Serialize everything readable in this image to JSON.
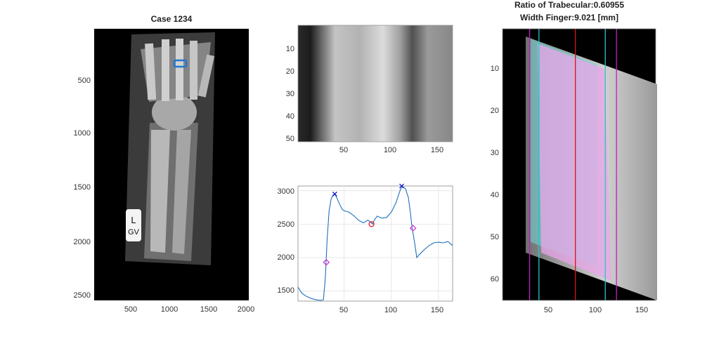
{
  "panels": {
    "left": {
      "title": "Case 1234",
      "xticks": [
        "500",
        "1000",
        "1500",
        "2000"
      ],
      "yticks": [
        "500",
        "1000",
        "1500",
        "2000",
        "2500"
      ],
      "marker_text": [
        "L",
        "GV"
      ]
    },
    "top_middle": {
      "xticks": [
        "50",
        "100",
        "150"
      ],
      "yticks": [
        "10",
        "20",
        "30",
        "40",
        "50"
      ]
    },
    "bottom_middle": {
      "xticks": [
        "50",
        "100",
        "150"
      ],
      "yticks": [
        "1500",
        "2000",
        "2500",
        "3000"
      ]
    },
    "right": {
      "title_line1": "Ratio of Trabecular:0.60955",
      "title_line2": "Width Finger:9.021 [mm]",
      "xticks": [
        "50",
        "100",
        "150"
      ],
      "yticks": [
        "10",
        "20",
        "30",
        "40",
        "50",
        "60"
      ]
    }
  },
  "chart_data": {
    "type": "line",
    "xlim": [
      1,
      165
    ],
    "ylim": [
      1350,
      3070
    ],
    "grid": true,
    "series": [
      {
        "x": [
          1,
          5,
          10,
          15,
          20,
          25,
          28,
          30,
          32,
          34,
          36,
          38,
          40,
          42,
          45,
          48,
          50,
          55,
          60,
          65,
          70,
          72,
          75,
          78,
          80,
          82,
          85,
          88,
          90,
          95,
          100,
          105,
          108,
          110,
          112,
          115,
          118,
          120,
          122,
          125,
          127,
          130,
          135,
          140,
          145,
          150,
          155,
          160,
          165
        ],
        "values": [
          1560,
          1470,
          1420,
          1390,
          1370,
          1360,
          1370,
          1700,
          2300,
          2700,
          2870,
          2930,
          2950,
          2900,
          2800,
          2720,
          2700,
          2680,
          2630,
          2560,
          2520,
          2530,
          2560,
          2530,
          2500,
          2560,
          2620,
          2600,
          2590,
          2600,
          2680,
          2820,
          2950,
          3030,
          3060,
          3030,
          2900,
          2700,
          2450,
          2200,
          2000,
          2050,
          2120,
          2180,
          2220,
          2230,
          2220,
          2240,
          2180
        ]
      }
    ],
    "markers": [
      {
        "type": "peak",
        "symbol": "x",
        "color": "#0000cc",
        "x": 40,
        "y": 2950
      },
      {
        "type": "peak",
        "symbol": "x",
        "color": "#0000cc",
        "x": 111,
        "y": 3070
      },
      {
        "type": "valley",
        "symbol": "o",
        "color": "#e0101a",
        "x": 79,
        "y": 2500
      },
      {
        "type": "edge",
        "symbol": "diamond",
        "color": "#cc33cc",
        "x": 31,
        "y": 1930
      },
      {
        "type": "edge",
        "symbol": "diamond",
        "color": "#cc33cc",
        "x": 123,
        "y": 2440
      }
    ],
    "line_color": "#1f6fbf"
  },
  "overlay_lines": {
    "magenta": [
      30,
      123
    ],
    "cyan": [
      40,
      111
    ],
    "red": [
      79
    ]
  }
}
